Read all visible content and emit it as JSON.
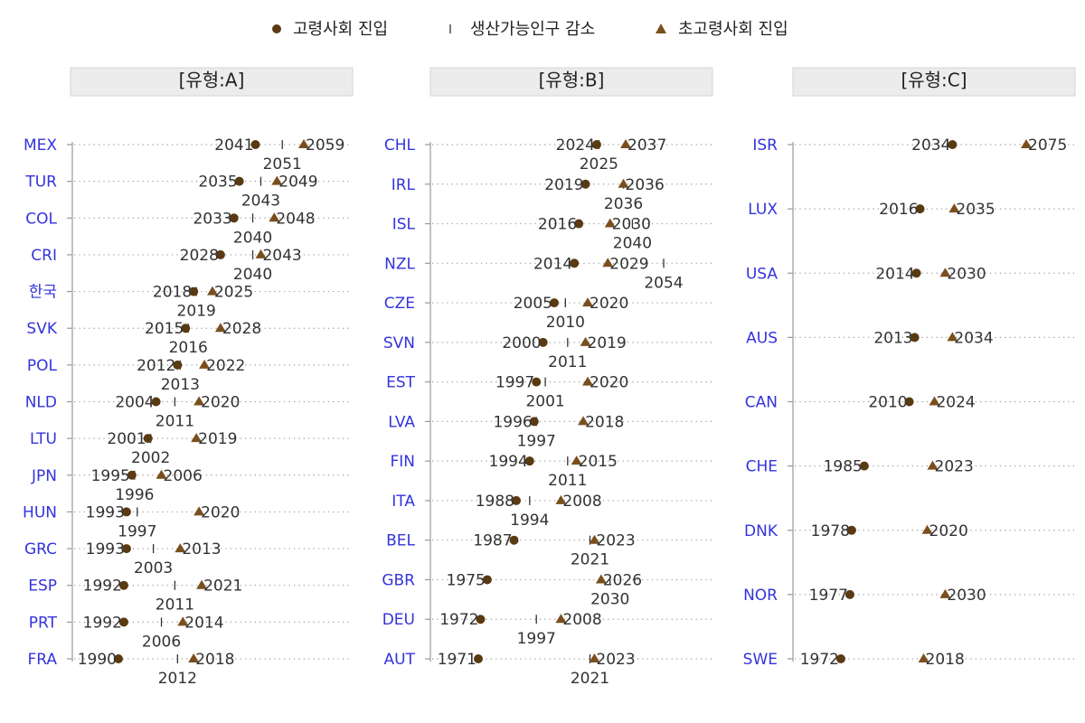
{
  "legend": {
    "entry_dot": "고령사회 진입",
    "entry_tick": "생산가능인구 감소",
    "entry_tri": "초고령사회 진입"
  },
  "colors": {
    "marker": "#5a3a12",
    "triangle": "#7a4f1e",
    "country": "#3333dd",
    "panel_bg": "#ececec"
  },
  "chart_data": [
    {
      "type": "scatter",
      "title": "[유형:A]",
      "series": [
        {
          "name": "고령사회 진입",
          "marker": "dot"
        },
        {
          "name": "생산가능인구 감소",
          "marker": "tick"
        },
        {
          "name": "초고령사회 진입",
          "marker": "triangle"
        }
      ],
      "rows": [
        {
          "country": "MEX",
          "aged": 2041,
          "decline": 2051,
          "super": 2059
        },
        {
          "country": "TUR",
          "aged": 2035,
          "decline": 2043,
          "super": 2049
        },
        {
          "country": "COL",
          "aged": 2033,
          "decline": 2040,
          "super": 2048
        },
        {
          "country": "CRI",
          "aged": 2028,
          "decline": 2040,
          "super": 2043
        },
        {
          "country": "한국",
          "aged": 2018,
          "decline": 2019,
          "super": 2025
        },
        {
          "country": "SVK",
          "aged": 2015,
          "decline": 2016,
          "super": 2028
        },
        {
          "country": "POL",
          "aged": 2012,
          "decline": 2013,
          "super": 2022
        },
        {
          "country": "NLD",
          "aged": 2004,
          "decline": 2011,
          "super": 2020
        },
        {
          "country": "LTU",
          "aged": 2001,
          "decline": 2002,
          "super": 2019
        },
        {
          "country": "JPN",
          "aged": 1995,
          "decline": 1996,
          "super": 2006
        },
        {
          "country": "HUN",
          "aged": 1993,
          "decline": 1997,
          "super": 2020
        },
        {
          "country": "GRC",
          "aged": 1993,
          "decline": 2003,
          "super": 2013
        },
        {
          "country": "ESP",
          "aged": 1992,
          "decline": 2011,
          "super": 2021
        },
        {
          "country": "PRT",
          "aged": 1992,
          "decline": 2006,
          "super": 2014
        },
        {
          "country": "FRA",
          "aged": 1990,
          "decline": 2012,
          "super": 2018
        }
      ]
    },
    {
      "type": "scatter",
      "title": "[유형:B]",
      "series": [
        {
          "name": "고령사회 진입",
          "marker": "dot"
        },
        {
          "name": "생산가능인구 감소",
          "marker": "tick"
        },
        {
          "name": "초고령사회 진입",
          "marker": "triangle"
        }
      ],
      "rows": [
        {
          "country": "CHL",
          "aged": 2024,
          "decline": 2025,
          "super": 2037
        },
        {
          "country": "IRL",
          "aged": 2019,
          "decline": 2036,
          "super": 2036
        },
        {
          "country": "ISL",
          "aged": 2016,
          "decline": 2040,
          "super": 2030
        },
        {
          "country": "NZL",
          "aged": 2014,
          "decline": 2054,
          "super": 2029
        },
        {
          "country": "CZE",
          "aged": 2005,
          "decline": 2010,
          "super": 2020
        },
        {
          "country": "SVN",
          "aged": 2000,
          "decline": 2011,
          "super": 2019
        },
        {
          "country": "EST",
          "aged": 1997,
          "decline": 2001,
          "super": 2020
        },
        {
          "country": "LVA",
          "aged": 1996,
          "decline": 1997,
          "super": 2018
        },
        {
          "country": "FIN",
          "aged": 1994,
          "decline": 2011,
          "super": 2015
        },
        {
          "country": "ITA",
          "aged": 1988,
          "decline": 1994,
          "super": 2008
        },
        {
          "country": "BEL",
          "aged": 1987,
          "decline": 2021,
          "super": 2023
        },
        {
          "country": "GBR",
          "aged": 1975,
          "decline": 2030,
          "super": 2026
        },
        {
          "country": "DEU",
          "aged": 1972,
          "decline": 1997,
          "super": 2008
        },
        {
          "country": "AUT",
          "aged": 1971,
          "decline": 2021,
          "super": 2023
        }
      ]
    },
    {
      "type": "scatter",
      "title": "[유형:C]",
      "series": [
        {
          "name": "고령사회 진입",
          "marker": "dot"
        },
        {
          "name": "초고령사회 진입",
          "marker": "triangle"
        }
      ],
      "rows": [
        {
          "country": "ISR",
          "aged": 2034,
          "decline": null,
          "super": 2075
        },
        {
          "country": "LUX",
          "aged": 2016,
          "decline": null,
          "super": 2035
        },
        {
          "country": "USA",
          "aged": 2014,
          "decline": null,
          "super": 2030
        },
        {
          "country": "AUS",
          "aged": 2013,
          "decline": null,
          "super": 2034
        },
        {
          "country": "CAN",
          "aged": 2010,
          "decline": null,
          "super": 2024
        },
        {
          "country": "CHE",
          "aged": 1985,
          "decline": null,
          "super": 2023
        },
        {
          "country": "DNK",
          "aged": 1978,
          "decline": null,
          "super": 2020
        },
        {
          "country": "NOR",
          "aged": 1977,
          "decline": null,
          "super": 2030
        },
        {
          "country": "SWE",
          "aged": 1972,
          "decline": null,
          "super": 2018
        }
      ]
    }
  ]
}
